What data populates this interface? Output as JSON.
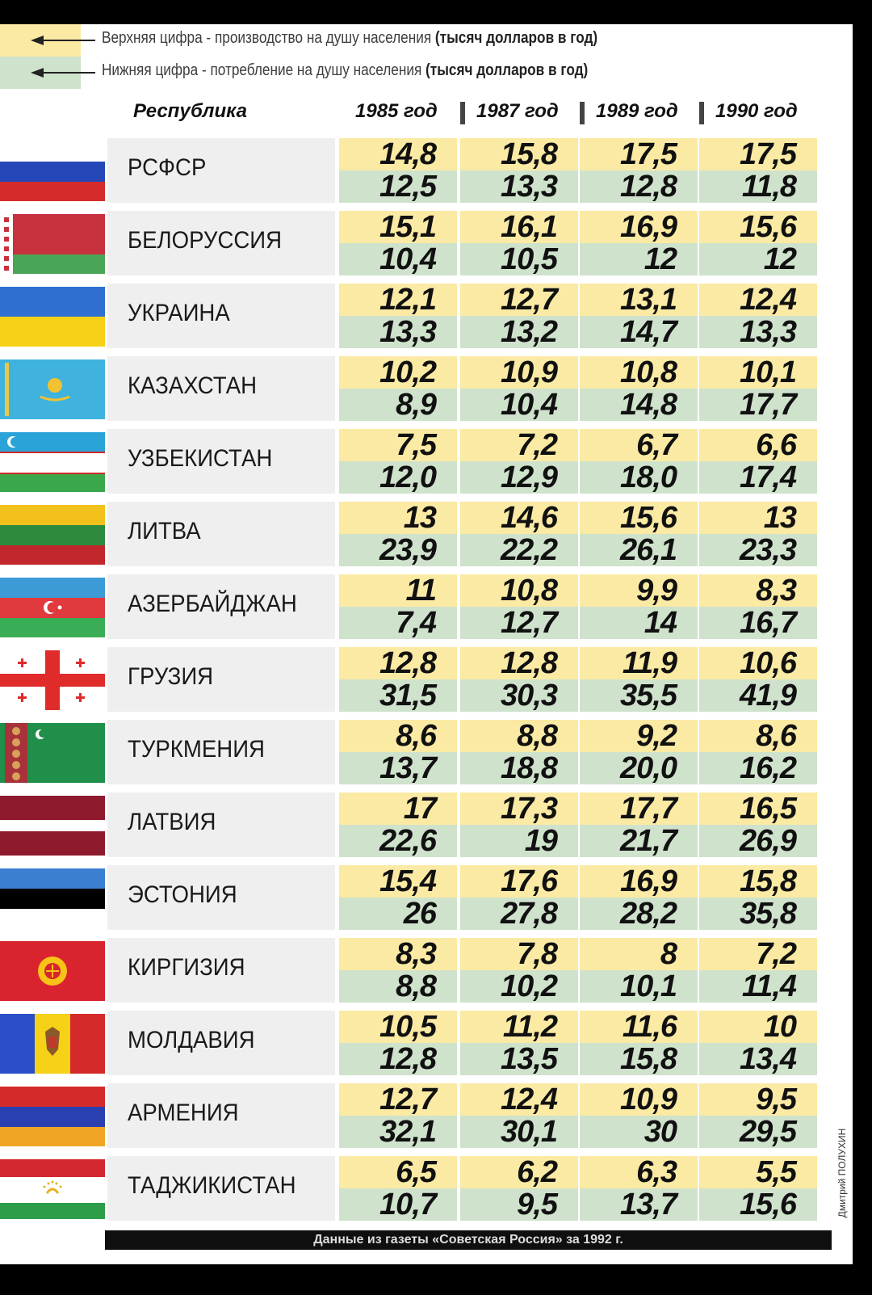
{
  "legend": {
    "top_text": "Верхняя цифра - производство на душу населения ",
    "top_bold": "(тысяч долларов в год)",
    "bottom_text": "Нижняя цифра - потребление на душу населения ",
    "bottom_bold": "(тысяч долларов в год)"
  },
  "header": {
    "republic": "Республика",
    "years": [
      "1985 год",
      "1987 год",
      "1989 год",
      "1990 год"
    ]
  },
  "rows": [
    {
      "name": "РСФСР",
      "flag": "russia-flag",
      "top": [
        "14,8",
        "15,8",
        "17,5",
        "17,5"
      ],
      "bottom": [
        "12,5",
        "13,3",
        "12,8",
        "11,8"
      ]
    },
    {
      "name": "БЕЛОРУССИЯ",
      "flag": "belarus-flag",
      "top": [
        "15,1",
        "16,1",
        "16,9",
        "15,6"
      ],
      "bottom": [
        "10,4",
        "10,5",
        "12",
        "12"
      ]
    },
    {
      "name": "УКРАИНА",
      "flag": "ukraine-flag",
      "top": [
        "12,1",
        "12,7",
        "13,1",
        "12,4"
      ],
      "bottom": [
        "13,3",
        "13,2",
        "14,7",
        "13,3"
      ]
    },
    {
      "name": "КАЗАХСТАН",
      "flag": "kazakhstan-flag",
      "top": [
        "10,2",
        "10,9",
        "10,8",
        "10,1"
      ],
      "bottom": [
        "8,9",
        "10,4",
        "14,8",
        "17,7"
      ]
    },
    {
      "name": "УЗБЕКИСТАН",
      "flag": "uzbekistan-flag",
      "top": [
        "7,5",
        "7,2",
        "6,7",
        "6,6"
      ],
      "bottom": [
        "12,0",
        "12,9",
        "18,0",
        "17,4"
      ]
    },
    {
      "name": "ЛИТВА",
      "flag": "lithuania-flag",
      "top": [
        "13",
        "14,6",
        "15,6",
        "13"
      ],
      "bottom": [
        "23,9",
        "22,2",
        "26,1",
        "23,3"
      ]
    },
    {
      "name": "АЗЕРБАЙДЖАН",
      "flag": "azerbaijan-flag",
      "top": [
        "11",
        "10,8",
        "9,9",
        "8,3"
      ],
      "bottom": [
        "7,4",
        "12,7",
        "14",
        "16,7"
      ]
    },
    {
      "name": "ГРУЗИЯ",
      "flag": "georgia-flag",
      "top": [
        "12,8",
        "12,8",
        "11,9",
        "10,6"
      ],
      "bottom": [
        "31,5",
        "30,3",
        "35,5",
        "41,9"
      ]
    },
    {
      "name": "ТУРКМЕНИЯ",
      "flag": "turkmenistan-flag",
      "top": [
        "8,6",
        "8,8",
        "9,2",
        "8,6"
      ],
      "bottom": [
        "13,7",
        "18,8",
        "20,0",
        "16,2"
      ]
    },
    {
      "name": "ЛАТВИЯ",
      "flag": "latvia-flag",
      "top": [
        "17",
        "17,3",
        "17,7",
        "16,5"
      ],
      "bottom": [
        "22,6",
        "19",
        "21,7",
        "26,9"
      ]
    },
    {
      "name": "ЭСТОНИЯ",
      "flag": "estonia-flag",
      "top": [
        "15,4",
        "17,6",
        "16,9",
        "15,8"
      ],
      "bottom": [
        "26",
        "27,8",
        "28,2",
        "35,8"
      ]
    },
    {
      "name": "КИРГИЗИЯ",
      "flag": "kyrgyzstan-flag",
      "top": [
        "8,3",
        "7,8",
        "8",
        "7,2"
      ],
      "bottom": [
        "8,8",
        "10,2",
        "10,1",
        "11,4"
      ]
    },
    {
      "name": "МОЛДАВИЯ",
      "flag": "moldova-flag",
      "top": [
        "10,5",
        "11,2",
        "11,6",
        "10"
      ],
      "bottom": [
        "12,8",
        "13,5",
        "15,8",
        "13,4"
      ]
    },
    {
      "name": "АРМЕНИЯ",
      "flag": "armenia-flag",
      "top": [
        "12,7",
        "12,4",
        "10,9",
        "9,5"
      ],
      "bottom": [
        "32,1",
        "30,1",
        "30",
        "29,5"
      ]
    },
    {
      "name": "ТАДЖИКИСТАН",
      "flag": "tajikistan-flag",
      "top": [
        "6,5",
        "6,2",
        "6,3",
        "5,5"
      ],
      "bottom": [
        "10,7",
        "9,5",
        "13,7",
        "15,6"
      ]
    }
  ],
  "footer": "Данные из газеты «Советская Россия» за 1992 г.",
  "author": "Дмитрий ПОЛУХИН",
  "colors": {
    "production_cell": "#fbeaa3",
    "consumption_cell": "#cfe2cc",
    "name_bg": "#efefef"
  }
}
